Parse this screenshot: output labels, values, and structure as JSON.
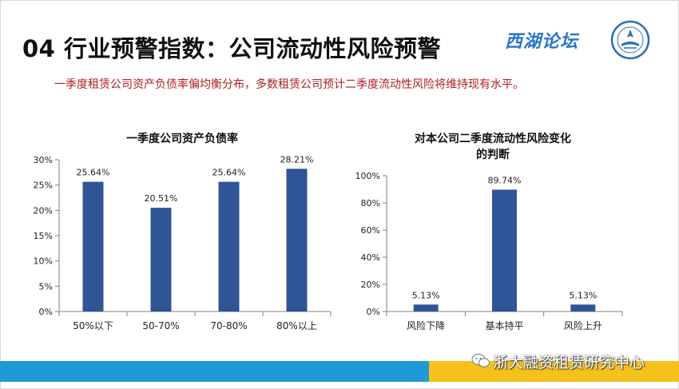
{
  "header": {
    "title": "04 行业预警指数：公司流动性风险预警",
    "logo_text": "西湖论坛",
    "subtitle": "一季度租赁公司资产负债率偏均衡分布，多数租赁公司预计二季度流动性风险将维持现有水平。"
  },
  "footer": {
    "text": "浙大融资租赁研究中心"
  },
  "colors": {
    "bar": "#2f5597",
    "subtitle": "#b01e1e",
    "band_blue": "#1e9ad6",
    "band_yellow": "#f5c11a"
  },
  "chart_data": [
    {
      "type": "bar",
      "title": "一季度公司资产负债率",
      "categories": [
        "50%以下",
        "50-70%",
        "70-80%",
        "80%以上"
      ],
      "values": [
        25.64,
        20.51,
        25.64,
        28.21
      ],
      "value_labels": [
        "25.64%",
        "20.51%",
        "25.64%",
        "28.21%"
      ],
      "ylim": [
        0,
        30
      ],
      "yticks": [
        0,
        5,
        10,
        15,
        20,
        25,
        30
      ],
      "ytick_labels": [
        "0%",
        "5%",
        "10%",
        "15%",
        "20%",
        "25%",
        "30%"
      ],
      "grid": false,
      "legend": "none"
    },
    {
      "type": "bar",
      "title_lines": [
        "对本公司二季度流动性风险变化",
        "的判断"
      ],
      "categories": [
        "风险下降",
        "基本持平",
        "风险上升"
      ],
      "values": [
        5.13,
        89.74,
        5.13
      ],
      "value_labels": [
        "5.13%",
        "89.74%",
        "5.13%"
      ],
      "ylim": [
        0,
        100
      ],
      "yticks": [
        0,
        20,
        40,
        60,
        80,
        100
      ],
      "ytick_labels": [
        "0%",
        "20%",
        "40%",
        "60%",
        "80%",
        "100%"
      ],
      "grid": false,
      "legend": "none"
    }
  ]
}
